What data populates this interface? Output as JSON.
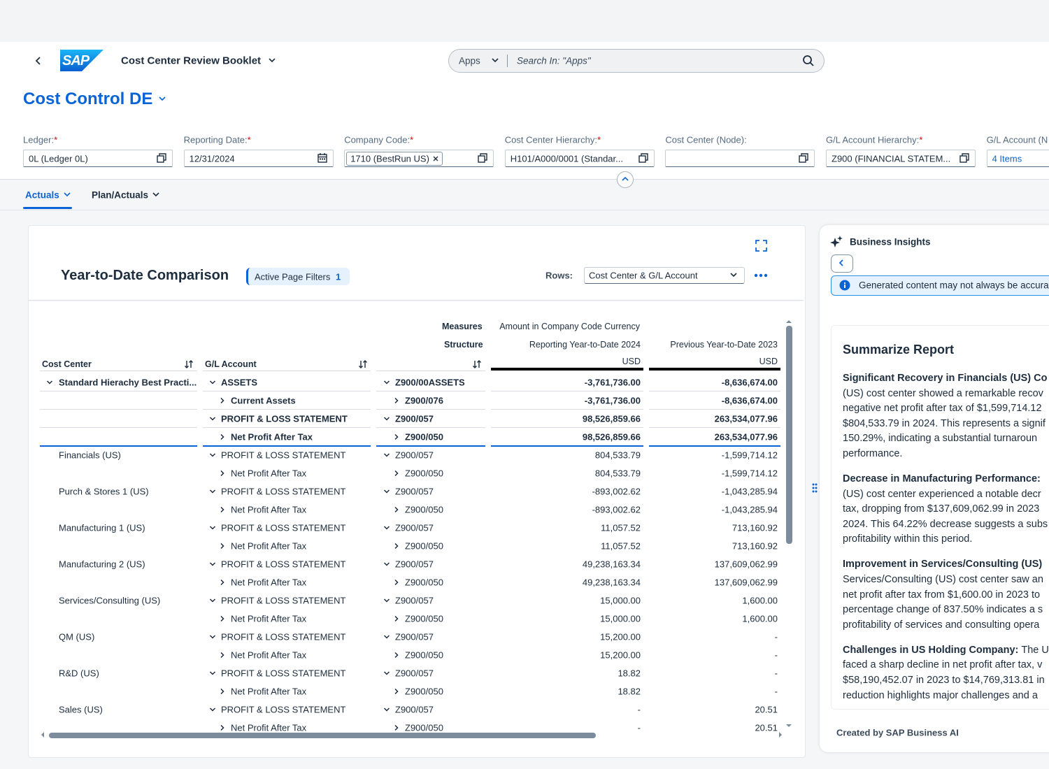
{
  "header": {
    "logo": "SAP",
    "app_title": "Cost Center Review Booklet",
    "search_scope": "Apps",
    "search_placeholder": "Search In: \"Apps\""
  },
  "page_title": "Cost Control DE",
  "filters": [
    {
      "label": "Ledger:",
      "required": "*",
      "value": "0L (Ledger 0L)"
    },
    {
      "label": "Reporting Date:",
      "required": "*",
      "value": "12/31/2024"
    },
    {
      "label": "Company Code:",
      "required": "*",
      "token": "1710 (BestRun US)"
    },
    {
      "label": "Cost Center Hierarchy:",
      "required": "*",
      "value": "H101/A000/0001 (Standar..."
    },
    {
      "label": "Cost Center (Node):"
    },
    {
      "label": "G/L Account Hierarchy:",
      "required": "*",
      "value": "Z900 (FINANCIAL STATEM..."
    },
    {
      "label": "G/L Account (N",
      "value": "4 Items"
    }
  ],
  "tabs": [
    "Actuals",
    "Plan/Actuals"
  ],
  "card": {
    "title": "Year-to-Date Comparison",
    "filter_chip": {
      "label": "Active Page Filters",
      "count": 1
    },
    "rows_label": "Rows:",
    "rows_value": "Cost Center & G/L Account"
  },
  "table": {
    "measures_label": "Measures",
    "measure": "Amount in Company Code Currency",
    "structure_label": "Structure",
    "columns": {
      "cost_center": "Cost Center",
      "gl_account": "G/L Account"
    },
    "periods": [
      {
        "label": "Reporting Year-to-Date 2024",
        "currency": "USD"
      },
      {
        "label": "Previous Year-to-Date 2023",
        "currency": "USD"
      }
    ],
    "rows": [
      {
        "cost_center": "Standard Hierachy Best Practi...",
        "cost_center_expanded": true,
        "gl_account": "ASSETS",
        "structure": "Z900/00ASSETS",
        "level": 0,
        "total": true,
        "values": [
          "-3,761,736.00",
          "-8,636,674.00"
        ]
      },
      {
        "gl_account": "Current Assets",
        "structure": "Z900/076",
        "level": 1,
        "total": true,
        "values": [
          "-3,761,736.00",
          "-8,636,674.00"
        ]
      },
      {
        "gl_account": "PROFIT & LOSS STATEMENT",
        "structure": "Z900/057",
        "level": 0,
        "total": true,
        "values": [
          "98,526,859.66",
          "263,534,077.96"
        ]
      },
      {
        "gl_account": "Net Profit After Tax",
        "structure": "Z900/050",
        "level": 1,
        "total": true,
        "values": [
          "98,526,859.66",
          "263,534,077.96"
        ]
      },
      {
        "cost_center": "Financials (US)",
        "gl_account": "PROFIT & LOSS STATEMENT",
        "structure": "Z900/057",
        "level": 0,
        "values": [
          "804,533.79",
          "-1,599,714.12"
        ]
      },
      {
        "gl_account": "Net Profit After Tax",
        "structure": "Z900/050",
        "level": 1,
        "values": [
          "804,533.79",
          "-1,599,714.12"
        ]
      },
      {
        "cost_center": "Purch & Stores 1 (US)",
        "gl_account": "PROFIT & LOSS STATEMENT",
        "structure": "Z900/057",
        "level": 0,
        "values": [
          "-893,002.62",
          "-1,043,285.94"
        ]
      },
      {
        "gl_account": "Net Profit After Tax",
        "structure": "Z900/050",
        "level": 1,
        "values": [
          "-893,002.62",
          "-1,043,285.94"
        ]
      },
      {
        "cost_center": "Manufacturing 1 (US)",
        "gl_account": "PROFIT & LOSS STATEMENT",
        "structure": "Z900/057",
        "level": 0,
        "values": [
          "11,057.52",
          "713,160.92"
        ]
      },
      {
        "gl_account": "Net Profit After Tax",
        "structure": "Z900/050",
        "level": 1,
        "values": [
          "11,057.52",
          "713,160.92"
        ]
      },
      {
        "cost_center": "Manufacturing 2 (US)",
        "gl_account": "PROFIT & LOSS STATEMENT",
        "structure": "Z900/057",
        "level": 0,
        "values": [
          "49,238,163.34",
          "137,609,062.99"
        ]
      },
      {
        "gl_account": "Net Profit After Tax",
        "structure": "Z900/050",
        "level": 1,
        "values": [
          "49,238,163.34",
          "137,609,062.99"
        ]
      },
      {
        "cost_center": "Services/Consulting (US)",
        "gl_account": "PROFIT & LOSS STATEMENT",
        "structure": "Z900/057",
        "level": 0,
        "values": [
          "15,000.00",
          "1,600.00"
        ]
      },
      {
        "gl_account": "Net Profit After Tax",
        "structure": "Z900/050",
        "level": 1,
        "values": [
          "15,000.00",
          "1,600.00"
        ]
      },
      {
        "cost_center": "QM (US)",
        "gl_account": "PROFIT & LOSS STATEMENT",
        "structure": "Z900/057",
        "level": 0,
        "values": [
          "15,200.00",
          "-"
        ]
      },
      {
        "gl_account": "Net Profit After Tax",
        "structure": "Z900/050",
        "level": 1,
        "values": [
          "15,200.00",
          "-"
        ]
      },
      {
        "cost_center": "R&D (US)",
        "gl_account": "PROFIT & LOSS STATEMENT",
        "structure": "Z900/057",
        "level": 0,
        "values": [
          "18.82",
          "-"
        ]
      },
      {
        "gl_account": "Net Profit After Tax",
        "structure": "Z900/050",
        "level": 1,
        "values": [
          "18.82",
          "-"
        ]
      },
      {
        "cost_center": "Sales (US)",
        "gl_account": "PROFIT & LOSS STATEMENT",
        "structure": "Z900/057",
        "level": 0,
        "values": [
          "-",
          "20.51"
        ]
      },
      {
        "gl_account": "Net Profit After Tax",
        "structure": "Z900/050",
        "level": 1,
        "values": [
          "-",
          "20.51"
        ]
      }
    ]
  },
  "insights": {
    "title": "Business Insights",
    "notice": "Generated content may not always be accurat",
    "report_title": "Summarize Report",
    "paragraphs": [
      {
        "heading": "Significant Recovery in Financials (US) Co",
        "lines": [
          "(US) cost center showed a remarkable recov",
          "negative net profit after tax of $1,599,714.12",
          "$804,533.79 in 2024. This represents a signif",
          "150.29%, indicating a substantial turnaroun",
          "performance."
        ]
      },
      {
        "heading": "Decrease in Manufacturing Performance:",
        "lines": [
          "(US) cost center experienced a notable decr",
          "tax, dropping from $137,609,062.99 in 2023",
          "2024. This 64.22% decrease suggests a subs",
          "profitability within this period."
        ]
      },
      {
        "heading": "Improvement in Services/Consulting (US)",
        "lines": [
          "Services/Consulting (US) cost center saw an",
          "net profit after tax from $1,600.00 in 2023 to",
          "percentage change of 837.50% indicates a s",
          "profitability of services and consulting opera"
        ]
      },
      {
        "heading": "Challenges in US Holding Company:",
        "tail": "The U",
        "lines": [
          "faced a sharp decline in net profit after tax, v",
          "$58,190,452.07 in 2023 to $14,769,313.81 in",
          "reduction highlights major challenges and a"
        ]
      }
    ],
    "footer": "Created by SAP Business AI"
  }
}
